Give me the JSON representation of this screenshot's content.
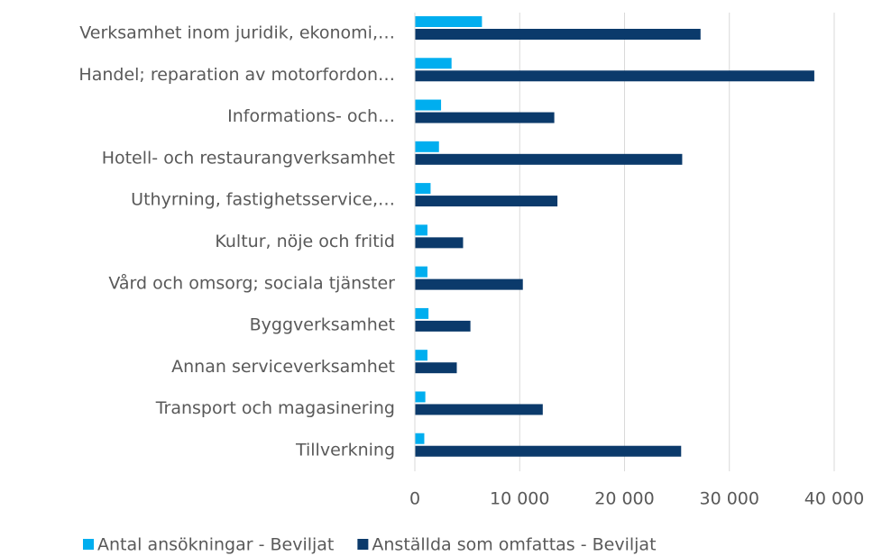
{
  "chart_data": {
    "type": "hbar",
    "categories": [
      "Verksamhet inom juridik, ekonomi,…",
      "Handel; reparation av motorfordon…",
      "Informations- och…",
      "Hotell- och restaurangverksamhet",
      "Uthyrning, fastighetsservice,…",
      "Kultur, nöje och fritid",
      "Vård och omsorg; sociala tjänster",
      "Byggverksamhet",
      "Annan serviceverksamhet",
      "Transport och magasinering",
      "Tillverkning"
    ],
    "series": [
      {
        "name": "Antal ansökningar - Beviljat",
        "color": "#00aeef",
        "values": [
          6400,
          3500,
          2500,
          2300,
          1500,
          1200,
          1200,
          1300,
          1200,
          1000,
          900
        ]
      },
      {
        "name": "Anställda som omfattas - Beviljat",
        "color": "#0b3a6b",
        "values": [
          27250,
          38100,
          13300,
          25500,
          13600,
          4600,
          10300,
          5300,
          4000,
          12200,
          25400
        ]
      }
    ],
    "xlim": [
      0,
      40000
    ],
    "xticks": [
      0,
      {
        "value": 10000,
        "label": "10 000"
      },
      {
        "value": 20000,
        "label": "20 000"
      },
      {
        "value": 30000,
        "label": "30 000"
      },
      {
        "value": 40000,
        "label": "40 000"
      }
    ],
    "grid": true,
    "legend": "bottom"
  }
}
